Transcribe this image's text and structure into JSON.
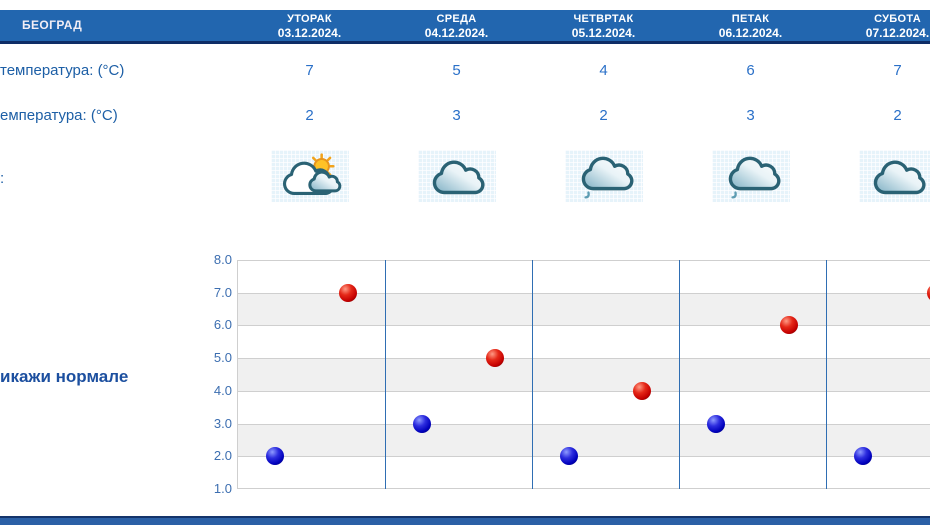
{
  "header": {
    "location": "БЕОГРАД"
  },
  "days": [
    {
      "name": "УТОРАК",
      "date": "03.12.2024.",
      "max": "7",
      "min": "2",
      "icon": "sun-clouds"
    },
    {
      "name": "СРЕДА",
      "date": "04.12.2024.",
      "max": "5",
      "min": "3",
      "icon": "cloud"
    },
    {
      "name": "ЧЕТВРТАК",
      "date": "05.12.2024.",
      "max": "4",
      "min": "2",
      "icon": "cloud-drizzle"
    },
    {
      "name": "ПЕТАК",
      "date": "06.12.2024.",
      "max": "6",
      "min": "3",
      "icon": "cloud-drizzle"
    },
    {
      "name": "СУБОТА",
      "date": "07.12.2024.",
      "max": "7",
      "min": "2",
      "icon": "cloud"
    }
  ],
  "row_labels": {
    "max_temp": "температура: (°C)",
    "min_temp": "емпература: (°C)",
    "weather": ":"
  },
  "links": {
    "show_normals": "икажи нормале"
  },
  "chart_data": {
    "type": "scatter",
    "categories": [
      "УТОРАК",
      "СРЕДА",
      "ЧЕТВРТАК",
      "ПЕТАК",
      "СУБОТА"
    ],
    "series": [
      {
        "name": "max_temperature",
        "color": "#c40000",
        "values": [
          7,
          5,
          4,
          6,
          7
        ]
      },
      {
        "name": "min_temperature",
        "color": "#0000bb",
        "values": [
          2,
          3,
          2,
          3,
          2
        ]
      }
    ],
    "ylim": [
      1.0,
      8.0
    ],
    "ytick_step": 1.0,
    "yticks": [
      "8.0",
      "7.0",
      "6.0",
      "5.0",
      "4.0",
      "3.0",
      "2.0",
      "1.0"
    ],
    "grid": "horizontal gridlines, alternating gray bands (7-6, 5-4, 3-2)",
    "band_color": "#f0f0f0",
    "gridline_color": "#cfcfcf",
    "column_divider_color": "#2f6eb3",
    "legend": "none"
  },
  "colors": {
    "header_bar": "#2266af",
    "header_border": "#0e2d66",
    "label_blue": "#1d5fa6",
    "value_blue": "#2a70c8",
    "link_blue": "#1c4f9f",
    "bottom_bar": "#2b60a6"
  }
}
